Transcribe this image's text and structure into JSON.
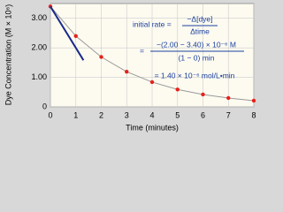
{
  "chart_data": {
    "type": "line",
    "x": [
      0,
      1,
      2,
      3,
      4,
      5,
      6,
      7,
      8
    ],
    "series": [
      {
        "color": "#e8201a",
        "values": [
          3.4,
          2.4,
          1.69,
          1.19,
          0.84,
          0.59,
          0.42,
          0.3,
          0.21
        ]
      }
    ],
    "tangent": {
      "color": "#1a2a8a",
      "x": [
        0,
        1.3
      ],
      "y": [
        3.4,
        1.58
      ]
    },
    "xlabel": "Time (minutes)",
    "ylabel": "Dye Concentration (M × 10⁶)",
    "xlim": [
      0,
      8
    ],
    "xticks": [
      0,
      1,
      2,
      3,
      4,
      5,
      6,
      7,
      8
    ],
    "ylim": [
      0,
      3.5
    ],
    "yticks": [
      0,
      {
        "value": 1,
        "label": "1.00"
      },
      {
        "value": 2,
        "label": "2.00"
      },
      {
        "value": 3,
        "label": "3.00"
      }
    ],
    "grid": true,
    "annotations": {
      "lhs": "initial rate =",
      "num1": "−Δ[dye]",
      "den1": "Δtime",
      "eq2": "=",
      "num2": "−(2.00 − 3.40) × 10⁻⁶ M",
      "den2": "(1 − 0) min",
      "result": "= 1.40 × 10⁻⁶ mol/L•min"
    }
  }
}
